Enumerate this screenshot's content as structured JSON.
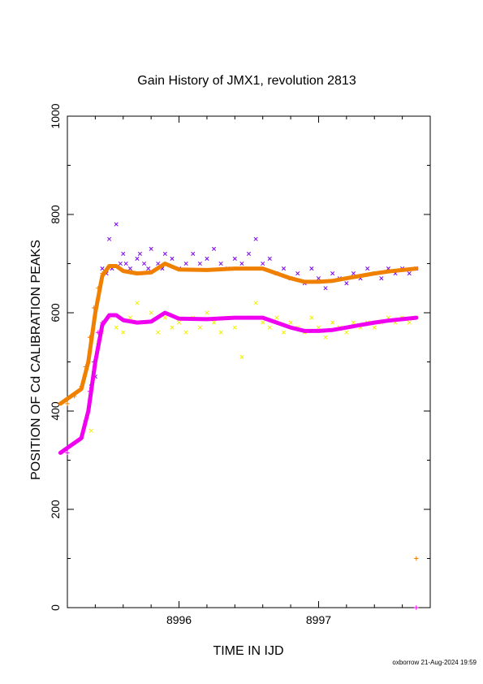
{
  "chart_data": {
    "type": "scatter",
    "title": "Gain History of JMX1, revolution 2813",
    "xlabel": "TIME IN IJD",
    "ylabel": "POSITION OF Cd CALIBRATION PEAKS",
    "xlim": [
      8995.2,
      8997.8
    ],
    "ylim": [
      0,
      1000
    ],
    "xticks": [
      "8996",
      "8997"
    ],
    "xtick_values": [
      8996,
      8997
    ],
    "yticks": [
      "0",
      "200",
      "400",
      "600",
      "800",
      "1000"
    ],
    "ytick_values": [
      0,
      200,
      400,
      600,
      800,
      1000
    ],
    "grid": false,
    "legend": "none",
    "footer": "oxborrow 21-Aug-2024 19:59",
    "colors": {
      "purple": "#7a00f0",
      "yellow": "#f0f000",
      "orange": "#f08000",
      "magenta": "#f000f0"
    },
    "series": [
      {
        "marker": "x",
        "color": "purple",
        "points": [
          [
            8995.37,
            450
          ],
          [
            8995.4,
            470
          ],
          [
            8995.45,
            690
          ],
          [
            8995.48,
            680
          ],
          [
            8995.5,
            750
          ],
          [
            8995.52,
            690
          ],
          [
            8995.55,
            780
          ],
          [
            8995.58,
            700
          ],
          [
            8995.6,
            720
          ],
          [
            8995.62,
            700
          ],
          [
            8995.65,
            690
          ],
          [
            8995.7,
            710
          ],
          [
            8995.72,
            720
          ],
          [
            8995.75,
            700
          ],
          [
            8995.78,
            690
          ],
          [
            8995.8,
            730
          ],
          [
            8995.85,
            700
          ],
          [
            8995.88,
            690
          ],
          [
            8995.9,
            720
          ],
          [
            8995.95,
            710
          ],
          [
            8996.0,
            690
          ],
          [
            8996.05,
            700
          ],
          [
            8996.1,
            720
          ],
          [
            8996.15,
            700
          ],
          [
            8996.2,
            710
          ],
          [
            8996.25,
            730
          ],
          [
            8996.3,
            700
          ],
          [
            8996.35,
            690
          ],
          [
            8996.4,
            710
          ],
          [
            8996.45,
            700
          ],
          [
            8996.5,
            720
          ],
          [
            8996.55,
            750
          ],
          [
            8996.6,
            700
          ],
          [
            8996.65,
            710
          ],
          [
            8996.7,
            680
          ],
          [
            8996.75,
            690
          ],
          [
            8996.8,
            670
          ],
          [
            8996.85,
            680
          ],
          [
            8996.9,
            660
          ],
          [
            8996.95,
            690
          ],
          [
            8997.0,
            670
          ],
          [
            8997.05,
            650
          ],
          [
            8997.1,
            680
          ],
          [
            8997.15,
            670
          ],
          [
            8997.2,
            660
          ],
          [
            8997.25,
            680
          ],
          [
            8997.3,
            670
          ],
          [
            8997.35,
            690
          ],
          [
            8997.4,
            680
          ],
          [
            8997.45,
            670
          ],
          [
            8997.5,
            690
          ],
          [
            8997.55,
            680
          ],
          [
            8997.6,
            690
          ],
          [
            8997.65,
            680
          ],
          [
            8997.7,
            690
          ]
        ]
      },
      {
        "marker": "x",
        "color": "yellow",
        "points": [
          [
            8995.37,
            360
          ],
          [
            8995.42,
            540
          ],
          [
            8995.45,
            560
          ],
          [
            8995.5,
            590
          ],
          [
            8995.55,
            570
          ],
          [
            8995.6,
            560
          ],
          [
            8995.65,
            590
          ],
          [
            8995.7,
            620
          ],
          [
            8995.75,
            580
          ],
          [
            8995.8,
            600
          ],
          [
            8995.85,
            560
          ],
          [
            8995.9,
            590
          ],
          [
            8995.95,
            570
          ],
          [
            8996.0,
            580
          ],
          [
            8996.05,
            560
          ],
          [
            8996.1,
            590
          ],
          [
            8996.15,
            570
          ],
          [
            8996.2,
            600
          ],
          [
            8996.25,
            580
          ],
          [
            8996.3,
            560
          ],
          [
            8996.35,
            590
          ],
          [
            8996.4,
            570
          ],
          [
            8996.45,
            510
          ],
          [
            8996.5,
            590
          ],
          [
            8996.55,
            620
          ],
          [
            8996.6,
            580
          ],
          [
            8996.65,
            570
          ],
          [
            8996.7,
            590
          ],
          [
            8996.75,
            560
          ],
          [
            8996.8,
            580
          ],
          [
            8996.85,
            570
          ],
          [
            8996.9,
            560
          ],
          [
            8996.95,
            590
          ],
          [
            8997.0,
            570
          ],
          [
            8997.05,
            550
          ],
          [
            8997.1,
            580
          ],
          [
            8997.15,
            570
          ],
          [
            8997.2,
            560
          ],
          [
            8997.25,
            580
          ],
          [
            8997.3,
            570
          ],
          [
            8997.35,
            580
          ],
          [
            8997.4,
            570
          ],
          [
            8997.45,
            580
          ],
          [
            8997.5,
            590
          ],
          [
            8997.55,
            580
          ],
          [
            8997.6,
            590
          ],
          [
            8997.65,
            580
          ],
          [
            8997.7,
            590
          ]
        ]
      },
      {
        "marker": "+",
        "color": "orange",
        "points": [
          [
            8995.2,
            415
          ],
          [
            8995.25,
            430
          ],
          [
            8995.3,
            450
          ],
          [
            8995.33,
            490
          ],
          [
            8995.36,
            550
          ],
          [
            8995.39,
            610
          ],
          [
            8995.42,
            650
          ],
          [
            8995.45,
            680
          ],
          [
            8997.7,
            100
          ]
        ]
      },
      {
        "marker": "+",
        "color": "magenta",
        "points": [
          [
            8995.2,
            315
          ],
          [
            8995.3,
            345
          ],
          [
            8995.33,
            380
          ],
          [
            8995.36,
            440
          ],
          [
            8995.39,
            500
          ],
          [
            8995.42,
            560
          ],
          [
            8995.45,
            580
          ],
          [
            8997.7,
            0
          ]
        ]
      },
      {
        "marker": "line",
        "color": "orange",
        "points": [
          [
            8995.15,
            415
          ],
          [
            8995.3,
            445
          ],
          [
            8995.35,
            500
          ],
          [
            8995.4,
            600
          ],
          [
            8995.45,
            675
          ],
          [
            8995.5,
            695
          ],
          [
            8995.55,
            695
          ],
          [
            8995.6,
            685
          ],
          [
            8995.7,
            680
          ],
          [
            8995.8,
            682
          ],
          [
            8995.9,
            700
          ],
          [
            8996.0,
            688
          ],
          [
            8996.2,
            687
          ],
          [
            8996.4,
            690
          ],
          [
            8996.6,
            690
          ],
          [
            8996.7,
            680
          ],
          [
            8996.8,
            670
          ],
          [
            8996.9,
            663
          ],
          [
            8997.0,
            663
          ],
          [
            8997.1,
            665
          ],
          [
            8997.2,
            670
          ],
          [
            8997.3,
            675
          ],
          [
            8997.4,
            680
          ],
          [
            8997.5,
            684
          ],
          [
            8997.6,
            687
          ],
          [
            8997.7,
            690
          ]
        ]
      },
      {
        "marker": "line",
        "color": "magenta",
        "points": [
          [
            8995.15,
            315
          ],
          [
            8995.3,
            345
          ],
          [
            8995.35,
            400
          ],
          [
            8995.4,
            500
          ],
          [
            8995.45,
            575
          ],
          [
            8995.5,
            595
          ],
          [
            8995.55,
            595
          ],
          [
            8995.6,
            585
          ],
          [
            8995.7,
            580
          ],
          [
            8995.8,
            582
          ],
          [
            8995.9,
            600
          ],
          [
            8996.0,
            588
          ],
          [
            8996.2,
            587
          ],
          [
            8996.4,
            590
          ],
          [
            8996.6,
            590
          ],
          [
            8996.7,
            580
          ],
          [
            8996.8,
            570
          ],
          [
            8996.9,
            563
          ],
          [
            8997.0,
            563
          ],
          [
            8997.1,
            565
          ],
          [
            8997.2,
            570
          ],
          [
            8997.3,
            575
          ],
          [
            8997.4,
            580
          ],
          [
            8997.5,
            584
          ],
          [
            8997.6,
            587
          ],
          [
            8997.7,
            590
          ]
        ]
      }
    ]
  }
}
